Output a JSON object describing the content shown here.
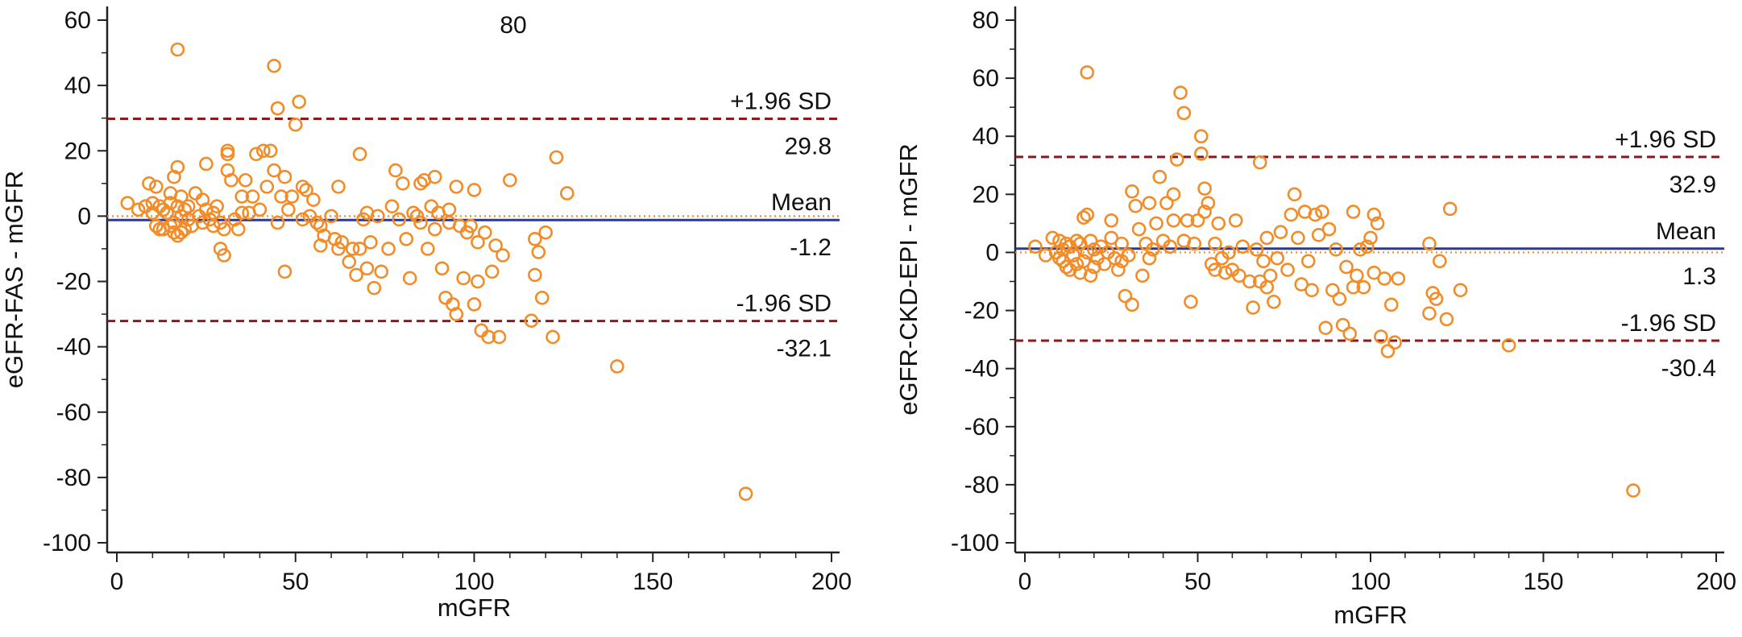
{
  "chart_data": [
    {
      "type": "scatter",
      "title": "",
      "xlabel": "mGFR",
      "ylabel": "eGFR-FAS - mGFR",
      "xlim": [
        0,
        200
      ],
      "ylim": [
        -100,
        60
      ],
      "xticks": [
        "0",
        "50",
        "100",
        "150",
        "200"
      ],
      "yticks": [
        "-100",
        "-80",
        "-60",
        "-40",
        "-20",
        "0",
        "20",
        "40",
        "60"
      ],
      "extra_tick_label": "80",
      "lines": [
        {
          "name": "+1.96 SD",
          "label": "+1.96 SD",
          "value": 29.8,
          "value_label": "29.8",
          "style": "dashed",
          "color": "#8b1a1a"
        },
        {
          "name": "Mean",
          "label": "Mean",
          "value": -1.2,
          "value_label": "-1.2",
          "style": "solid",
          "color": "#2b3a8f"
        },
        {
          "name": "-1.96 SD",
          "label": "-1.96 SD",
          "value": -32.1,
          "value_label": "-32.1",
          "style": "dashed",
          "color": "#8b1a1a"
        }
      ],
      "zero_line": {
        "value": 0,
        "style": "dotted",
        "color": "#f28c28"
      },
      "marker_color": "#f28c28",
      "points": [
        [
          3,
          4
        ],
        [
          6,
          2
        ],
        [
          8,
          3
        ],
        [
          9,
          10
        ],
        [
          10,
          1
        ],
        [
          10,
          4
        ],
        [
          11,
          -3
        ],
        [
          11,
          9
        ],
        [
          12,
          -4
        ],
        [
          12,
          3
        ],
        [
          13,
          -4
        ],
        [
          13,
          2
        ],
        [
          14,
          1
        ],
        [
          15,
          7
        ],
        [
          15,
          -3
        ],
        [
          15,
          4
        ],
        [
          16,
          -2
        ],
        [
          16,
          12
        ],
        [
          16,
          -5
        ],
        [
          17,
          15
        ],
        [
          17,
          3
        ],
        [
          17,
          -6
        ],
        [
          18,
          6
        ],
        [
          18,
          0
        ],
        [
          18,
          -5
        ],
        [
          19,
          2
        ],
        [
          19,
          -4
        ],
        [
          20,
          -1
        ],
        [
          20,
          3
        ],
        [
          21,
          -3
        ],
        [
          17,
          51
        ],
        [
          22,
          7
        ],
        [
          23,
          0
        ],
        [
          24,
          5
        ],
        [
          24,
          -2
        ],
        [
          25,
          16
        ],
        [
          25,
          2
        ],
        [
          26,
          -1
        ],
        [
          27,
          -3
        ],
        [
          27,
          1
        ],
        [
          28,
          3
        ],
        [
          29,
          -2
        ],
        [
          29,
          -10
        ],
        [
          30,
          -4
        ],
        [
          30,
          -12
        ],
        [
          31,
          14
        ],
        [
          31,
          19
        ],
        [
          31,
          20
        ],
        [
          32,
          11
        ],
        [
          33,
          -1
        ],
        [
          34,
          -4
        ],
        [
          35,
          6
        ],
        [
          35,
          1
        ],
        [
          36,
          11
        ],
        [
          37,
          1
        ],
        [
          38,
          6
        ],
        [
          39,
          19
        ],
        [
          40,
          2
        ],
        [
          41,
          20
        ],
        [
          42,
          9
        ],
        [
          43,
          20
        ],
        [
          44,
          14
        ],
        [
          44,
          46
        ],
        [
          45,
          -2
        ],
        [
          45,
          33
        ],
        [
          46,
          6
        ],
        [
          47,
          12
        ],
        [
          47,
          -17
        ],
        [
          48,
          2
        ],
        [
          49,
          6
        ],
        [
          50,
          28
        ],
        [
          51,
          35
        ],
        [
          52,
          9
        ],
        [
          52,
          -1
        ],
        [
          53,
          8
        ],
        [
          54,
          0
        ],
        [
          55,
          5
        ],
        [
          56,
          -2
        ],
        [
          57,
          -3
        ],
        [
          57,
          -9
        ],
        [
          58,
          -6
        ],
        [
          60,
          0
        ],
        [
          61,
          -7
        ],
        [
          62,
          -10
        ],
        [
          62,
          9
        ],
        [
          63,
          -8
        ],
        [
          65,
          -14
        ],
        [
          66,
          -10
        ],
        [
          67,
          -18
        ],
        [
          68,
          19
        ],
        [
          68,
          -10
        ],
        [
          69,
          -1
        ],
        [
          70,
          1
        ],
        [
          70,
          -16
        ],
        [
          71,
          -8
        ],
        [
          72,
          -22
        ],
        [
          73,
          0
        ],
        [
          74,
          -17
        ],
        [
          76,
          -10
        ],
        [
          77,
          3
        ],
        [
          78,
          14
        ],
        [
          79,
          -1
        ],
        [
          80,
          10
        ],
        [
          81,
          -7
        ],
        [
          82,
          -19
        ],
        [
          83,
          1
        ],
        [
          84,
          0
        ],
        [
          85,
          10
        ],
        [
          85,
          -2
        ],
        [
          86,
          11
        ],
        [
          87,
          -10
        ],
        [
          88,
          3
        ],
        [
          89,
          12
        ],
        [
          89,
          -4
        ],
        [
          90,
          1
        ],
        [
          91,
          -16
        ],
        [
          92,
          -25
        ],
        [
          93,
          -2
        ],
        [
          93,
          2
        ],
        [
          94,
          -27
        ],
        [
          95,
          9
        ],
        [
          95,
          -30
        ],
        [
          96,
          -3
        ],
        [
          97,
          -19
        ],
        [
          98,
          -5
        ],
        [
          99,
          -3
        ],
        [
          100,
          -27
        ],
        [
          100,
          8
        ],
        [
          101,
          -8
        ],
        [
          101,
          -20
        ],
        [
          102,
          -35
        ],
        [
          103,
          -5
        ],
        [
          104,
          -37
        ],
        [
          105,
          -17
        ],
        [
          106,
          -9
        ],
        [
          107,
          -37
        ],
        [
          108,
          -12
        ],
        [
          110,
          11
        ],
        [
          116,
          -32
        ],
        [
          117,
          -18
        ],
        [
          117,
          -7
        ],
        [
          118,
          -11
        ],
        [
          119,
          -25
        ],
        [
          120,
          -5
        ],
        [
          122,
          -37
        ],
        [
          123,
          18
        ],
        [
          126,
          7
        ],
        [
          140,
          -46
        ],
        [
          176,
          -85
        ]
      ]
    },
    {
      "type": "scatter",
      "title": "",
      "xlabel": "mGFR",
      "ylabel": "eGFR-CKD-EPI - mGFR",
      "xlim": [
        0,
        200
      ],
      "ylim": [
        -100,
        80
      ],
      "xticks": [
        "0",
        "50",
        "100",
        "150",
        "200"
      ],
      "yticks": [
        "-100",
        "-80",
        "-60",
        "-40",
        "-20",
        "0",
        "20",
        "40",
        "60",
        "80"
      ],
      "lines": [
        {
          "name": "+1.96 SD",
          "label": "+1.96 SD",
          "value": 32.9,
          "value_label": "32.9",
          "style": "dashed",
          "color": "#8b1a1a"
        },
        {
          "name": "Mean",
          "label": "Mean",
          "value": 1.3,
          "value_label": "1.3",
          "style": "solid",
          "color": "#2b3a8f"
        },
        {
          "name": "-1.96 SD",
          "label": "-1.96 SD",
          "value": -30.4,
          "value_label": "-30.4",
          "style": "dashed",
          "color": "#8b1a1a"
        }
      ],
      "zero_line": {
        "value": 0,
        "style": "dotted",
        "color": "#f28c28"
      },
      "marker_color": "#f28c28",
      "points": [
        [
          3,
          2
        ],
        [
          6,
          -1
        ],
        [
          8,
          5
        ],
        [
          9,
          0
        ],
        [
          10,
          -2
        ],
        [
          10,
          4
        ],
        [
          11,
          -3
        ],
        [
          11,
          1
        ],
        [
          12,
          -5
        ],
        [
          12,
          3
        ],
        [
          13,
          -6
        ],
        [
          13,
          2
        ],
        [
          14,
          -1
        ],
        [
          15,
          4
        ],
        [
          15,
          -4
        ],
        [
          16,
          -7
        ],
        [
          16,
          3
        ],
        [
          17,
          12
        ],
        [
          17,
          -3
        ],
        [
          18,
          13
        ],
        [
          18,
          0
        ],
        [
          18,
          62
        ],
        [
          19,
          -8
        ],
        [
          19,
          4
        ],
        [
          20,
          1
        ],
        [
          20,
          -5
        ],
        [
          21,
          -2
        ],
        [
          22,
          2
        ],
        [
          23,
          -4
        ],
        [
          24,
          0
        ],
        [
          25,
          11
        ],
        [
          25,
          5
        ],
        [
          26,
          -2
        ],
        [
          27,
          -6
        ],
        [
          28,
          3
        ],
        [
          28,
          -3
        ],
        [
          29,
          -15
        ],
        [
          30,
          -1
        ],
        [
          31,
          21
        ],
        [
          31,
          -18
        ],
        [
          32,
          16
        ],
        [
          33,
          8
        ],
        [
          34,
          -8
        ],
        [
          35,
          3
        ],
        [
          36,
          17
        ],
        [
          36,
          -2
        ],
        [
          37,
          1
        ],
        [
          38,
          10
        ],
        [
          39,
          26
        ],
        [
          40,
          4
        ],
        [
          41,
          17
        ],
        [
          42,
          2
        ],
        [
          43,
          20
        ],
        [
          43,
          11
        ],
        [
          44,
          32
        ],
        [
          45,
          55
        ],
        [
          46,
          48
        ],
        [
          46,
          4
        ],
        [
          47,
          11
        ],
        [
          48,
          -17
        ],
        [
          49,
          3
        ],
        [
          50,
          11
        ],
        [
          51,
          34
        ],
        [
          51,
          40
        ],
        [
          52,
          22
        ],
        [
          52,
          14
        ],
        [
          53,
          17
        ],
        [
          54,
          -4
        ],
        [
          55,
          -6
        ],
        [
          55,
          3
        ],
        [
          56,
          10
        ],
        [
          57,
          -2
        ],
        [
          58,
          -7
        ],
        [
          59,
          0
        ],
        [
          60,
          -6
        ],
        [
          61,
          11
        ],
        [
          62,
          -8
        ],
        [
          63,
          2
        ],
        [
          65,
          -10
        ],
        [
          66,
          -19
        ],
        [
          67,
          1
        ],
        [
          68,
          31
        ],
        [
          68,
          -10
        ],
        [
          69,
          -3
        ],
        [
          70,
          5
        ],
        [
          70,
          -12
        ],
        [
          71,
          -8
        ],
        [
          72,
          -17
        ],
        [
          73,
          -2
        ],
        [
          74,
          7
        ],
        [
          76,
          -6
        ],
        [
          77,
          13
        ],
        [
          78,
          20
        ],
        [
          79,
          5
        ],
        [
          80,
          -11
        ],
        [
          81,
          14
        ],
        [
          82,
          -3
        ],
        [
          83,
          -13
        ],
        [
          84,
          13
        ],
        [
          85,
          6
        ],
        [
          86,
          14
        ],
        [
          87,
          -26
        ],
        [
          88,
          8
        ],
        [
          89,
          -13
        ],
        [
          90,
          1
        ],
        [
          91,
          -16
        ],
        [
          92,
          -25
        ],
        [
          93,
          -5
        ],
        [
          94,
          -28
        ],
        [
          95,
          14
        ],
        [
          95,
          -12
        ],
        [
          96,
          -8
        ],
        [
          97,
          1
        ],
        [
          98,
          -12
        ],
        [
          99,
          2
        ],
        [
          100,
          5
        ],
        [
          101,
          13
        ],
        [
          101,
          -7
        ],
        [
          102,
          10
        ],
        [
          103,
          -29
        ],
        [
          104,
          -9
        ],
        [
          105,
          -34
        ],
        [
          106,
          -18
        ],
        [
          107,
          -31
        ],
        [
          108,
          -9
        ],
        [
          117,
          3
        ],
        [
          117,
          -21
        ],
        [
          118,
          -14
        ],
        [
          119,
          -16
        ],
        [
          120,
          -3
        ],
        [
          122,
          -23
        ],
        [
          123,
          15
        ],
        [
          126,
          -13
        ],
        [
          140,
          -32
        ],
        [
          176,
          -82
        ]
      ]
    }
  ]
}
